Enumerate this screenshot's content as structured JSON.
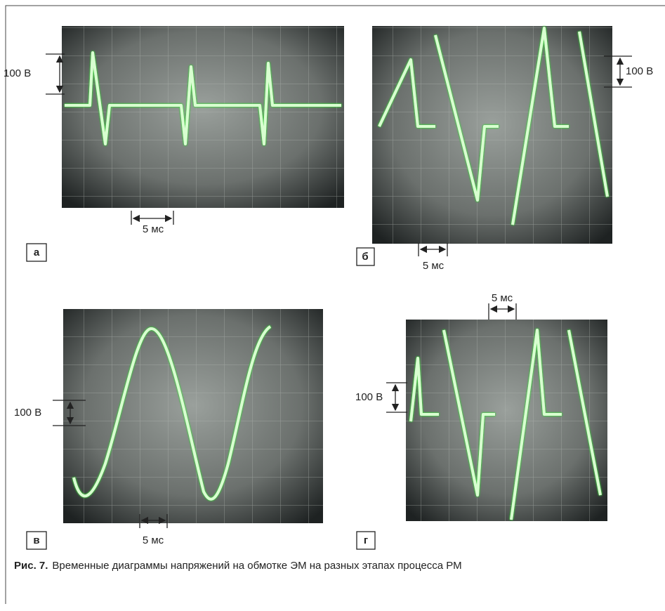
{
  "panels": [
    {
      "label": "а",
      "voltage_scale": "100 В",
      "time_scale": "5 мс"
    },
    {
      "label": "б",
      "voltage_scale": "100 В",
      "time_scale": "5 мс"
    },
    {
      "label": "в",
      "voltage_scale": "100 В",
      "time_scale": "5 мс"
    },
    {
      "label": "г",
      "voltage_scale": "100 В",
      "time_scale": "5 мс"
    }
  ],
  "caption": {
    "figure_number": "Рис. 7.",
    "text": "Временные диаграммы напряжений на обмотке ЭМ на разных этапах процесса РМ"
  }
}
